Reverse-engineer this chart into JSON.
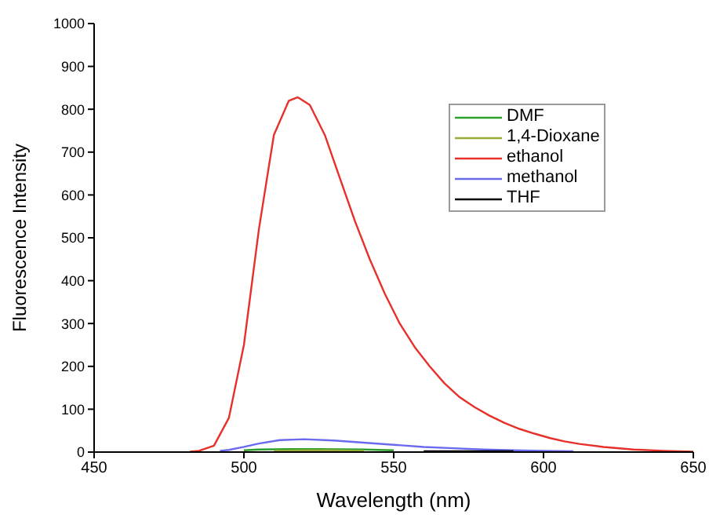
{
  "chart_data": {
    "type": "line",
    "xlabel": "Wavelength (nm)",
    "ylabel": "Fluorescence Intensity",
    "xlim": [
      450,
      650
    ],
    "xticks": [
      450,
      500,
      550,
      600,
      650
    ],
    "ylim": [
      0,
      1000
    ],
    "yticks": [
      0,
      100,
      200,
      300,
      400,
      500,
      600,
      700,
      800,
      900,
      1000
    ],
    "legend": "top right",
    "marker": "none",
    "line_style": "solid",
    "series": [
      {
        "name": "DMF",
        "color": "#2ca02c",
        "x": [
          500,
          505,
          515,
          525,
          540,
          550
        ],
        "values": [
          4,
          6,
          7,
          7,
          6,
          4
        ]
      },
      {
        "name": "1,4-Dioxane",
        "color": "#9aaa3a",
        "x": [
          510,
          520,
          530,
          540
        ],
        "values": [
          3,
          4,
          4,
          3
        ]
      },
      {
        "name": "ethanol",
        "color": "#e8302a",
        "x": [
          482,
          485,
          490,
          495,
          500,
          505,
          510,
          515,
          518,
          522,
          527,
          532,
          537,
          542,
          547,
          552,
          557,
          562,
          567,
          572,
          577,
          582,
          587,
          592,
          597,
          602,
          607,
          612,
          620,
          630,
          640,
          650
        ],
        "values": [
          1,
          3,
          15,
          80,
          250,
          520,
          740,
          820,
          828,
          810,
          740,
          640,
          540,
          450,
          370,
          300,
          245,
          200,
          160,
          128,
          105,
          85,
          68,
          54,
          43,
          33,
          25,
          19,
          12,
          6,
          3,
          1
        ]
      },
      {
        "name": "methanol",
        "color": "#6a6aee",
        "x": [
          492,
          495,
          500,
          505,
          512,
          520,
          530,
          540,
          550,
          560,
          570,
          580,
          590,
          600,
          610
        ],
        "values": [
          3,
          5,
          12,
          20,
          28,
          30,
          27,
          22,
          17,
          12,
          9,
          6,
          4,
          3,
          2
        ]
      },
      {
        "name": "THF",
        "color": "#000000",
        "x": [
          560,
          575,
          590
        ],
        "values": [
          2,
          2,
          2
        ]
      }
    ]
  }
}
